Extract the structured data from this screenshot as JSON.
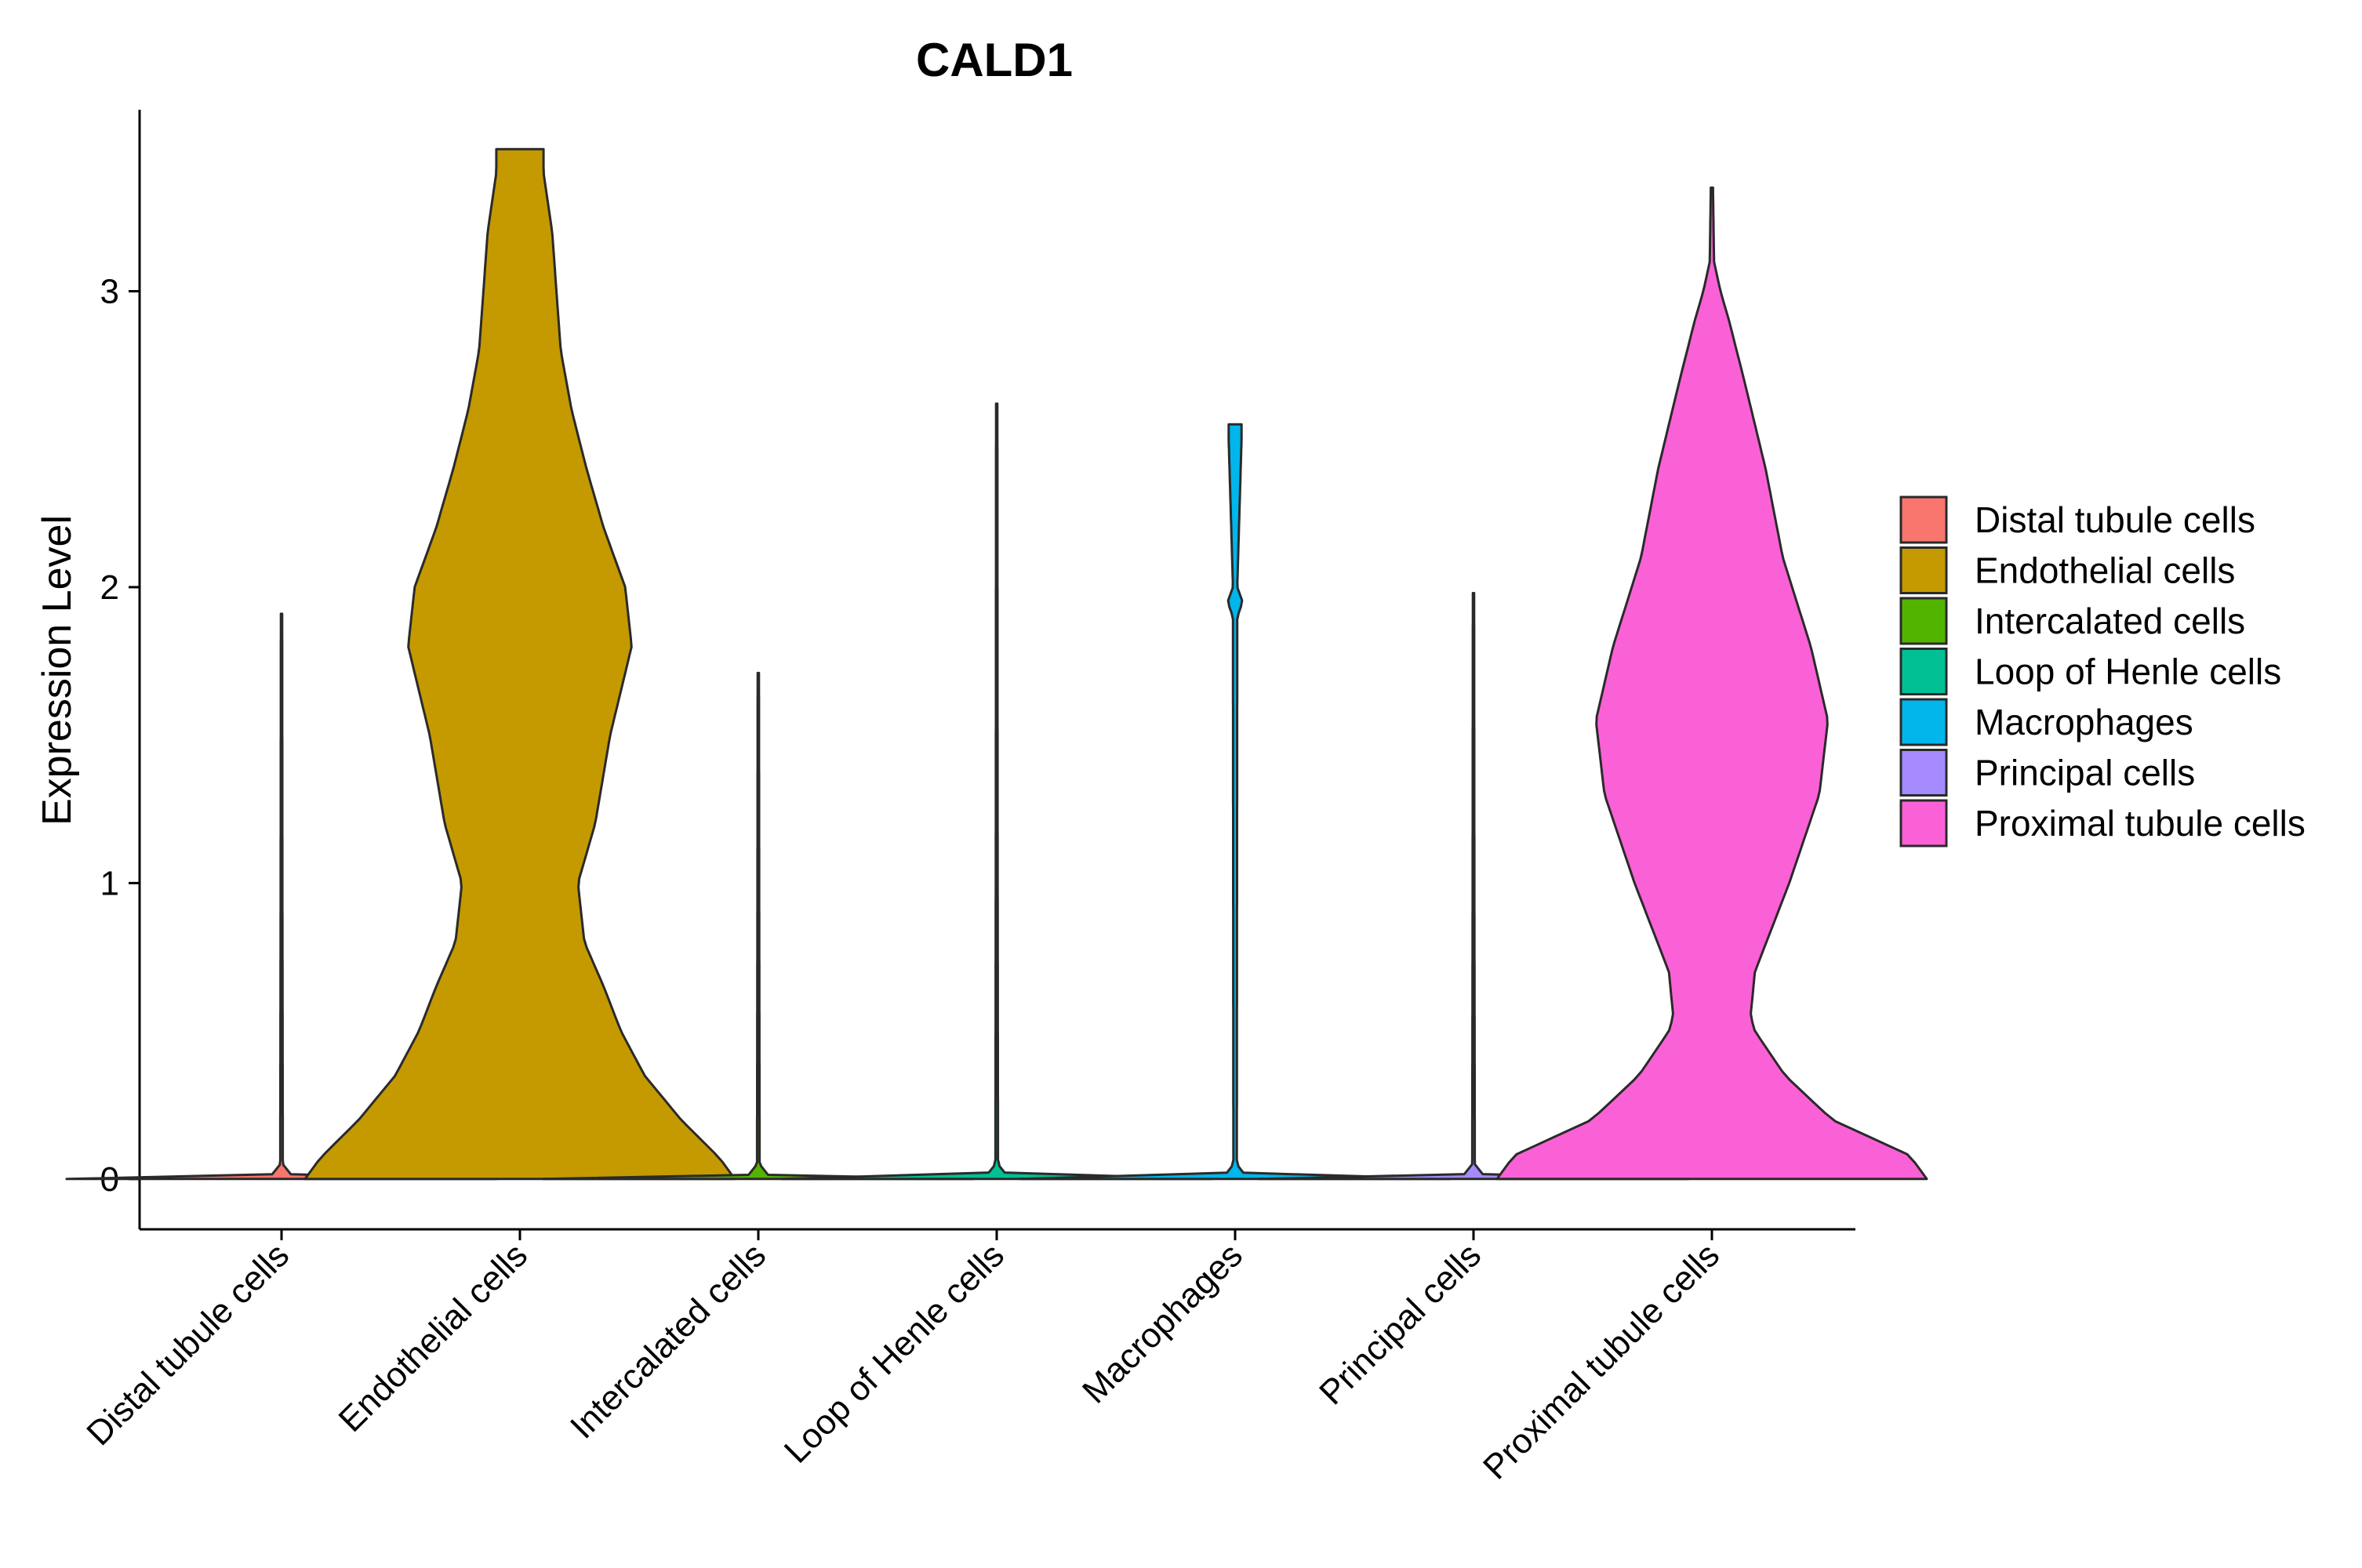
{
  "chart_data": {
    "type": "violin",
    "title": "CALD1",
    "xlabel": "",
    "ylabel": "Expression Level",
    "ylim": [
      -0.17,
      3.6
    ],
    "yticks": [
      0,
      1,
      2,
      3
    ],
    "grid": false,
    "legend_position": "right",
    "categories": [
      "Distal tubule cells",
      "Endothelial cells",
      "Intercalated cells",
      "Loop of Henle cells",
      "Macrophages",
      "Principal cells",
      "Proximal tubule cells"
    ],
    "series": [
      {
        "name": "Distal tubule cells",
        "color": "#F8766D",
        "max": 1.91,
        "density": [
          [
            0.0,
            1.0
          ],
          [
            0.003,
            0.5
          ],
          [
            0.01,
            0.05
          ],
          [
            0.05,
            0.006
          ],
          [
            1.0,
            0.004
          ],
          [
            1.91,
            0.003
          ]
        ]
      },
      {
        "name": "Endothelial cells",
        "color": "#C49A00",
        "max": 3.48,
        "density": [
          [
            0.0,
            1.0
          ],
          [
            0.07,
            0.93
          ],
          [
            0.2,
            0.75
          ],
          [
            0.35,
            0.58
          ],
          [
            0.5,
            0.47
          ],
          [
            0.65,
            0.39
          ],
          [
            0.8,
            0.3
          ],
          [
            1.0,
            0.27
          ],
          [
            1.2,
            0.35
          ],
          [
            1.5,
            0.42
          ],
          [
            1.8,
            0.52
          ],
          [
            2.0,
            0.49
          ],
          [
            2.2,
            0.39
          ],
          [
            2.4,
            0.31
          ],
          [
            2.6,
            0.24
          ],
          [
            2.8,
            0.19
          ],
          [
            3.0,
            0.17
          ],
          [
            3.2,
            0.15
          ],
          [
            3.4,
            0.11
          ],
          [
            3.48,
            0.11
          ]
        ]
      },
      {
        "name": "Intercalated cells",
        "color": "#53B400",
        "max": 1.71,
        "density": [
          [
            0.0,
            1.0
          ],
          [
            0.003,
            0.5
          ],
          [
            0.01,
            0.05
          ],
          [
            0.05,
            0.006
          ],
          [
            1.0,
            0.004
          ],
          [
            1.71,
            0.003
          ]
        ]
      },
      {
        "name": "Loop of Henle cells",
        "color": "#00C094",
        "max": 2.62,
        "density": [
          [
            0.0,
            1.0
          ],
          [
            0.003,
            0.5
          ],
          [
            0.01,
            0.05
          ],
          [
            0.05,
            0.006
          ],
          [
            1.3,
            0.004
          ],
          [
            2.62,
            0.003
          ]
        ]
      },
      {
        "name": "Macrophages",
        "color": "#00B6EB",
        "max": 2.55,
        "density": [
          [
            0.0,
            1.0
          ],
          [
            0.003,
            0.5
          ],
          [
            0.01,
            0.05
          ],
          [
            0.05,
            0.008
          ],
          [
            1.9,
            0.01
          ],
          [
            1.95,
            0.035
          ],
          [
            2.0,
            0.01
          ],
          [
            2.5,
            0.03
          ],
          [
            2.55,
            0.03
          ]
        ]
      },
      {
        "name": "Principal cells",
        "color": "#A58AFF",
        "max": 1.98,
        "density": [
          [
            0.0,
            1.0
          ],
          [
            0.003,
            0.5
          ],
          [
            0.01,
            0.05
          ],
          [
            0.05,
            0.006
          ],
          [
            1.0,
            0.004
          ],
          [
            1.98,
            0.003
          ]
        ]
      },
      {
        "name": "Proximal tubule cells",
        "color": "#FB61D7",
        "max": 3.35,
        "density": [
          [
            0.0,
            1.0
          ],
          [
            0.08,
            0.92
          ],
          [
            0.2,
            0.56
          ],
          [
            0.35,
            0.34
          ],
          [
            0.5,
            0.2
          ],
          [
            0.55,
            0.18
          ],
          [
            0.7,
            0.2
          ],
          [
            1.0,
            0.36
          ],
          [
            1.3,
            0.5
          ],
          [
            1.55,
            0.54
          ],
          [
            1.8,
            0.46
          ],
          [
            2.1,
            0.33
          ],
          [
            2.4,
            0.25
          ],
          [
            2.7,
            0.15
          ],
          [
            2.9,
            0.08
          ],
          [
            3.0,
            0.04
          ],
          [
            3.1,
            0.01
          ],
          [
            3.35,
            0.005
          ]
        ]
      }
    ]
  }
}
